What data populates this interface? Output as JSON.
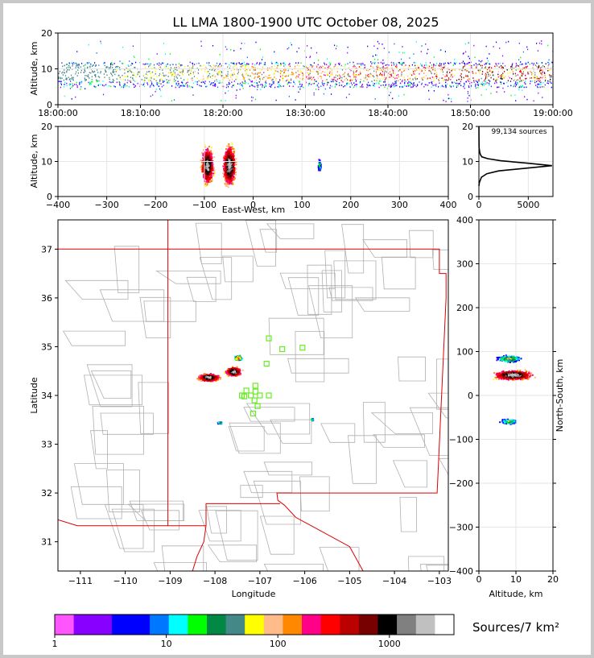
{
  "title": "LL LMA 1800-1900 UTC October 08, 2025",
  "chart_data": [
    {
      "type": "scatter",
      "panel": "time-height",
      "ylabel": "Altitude, km",
      "xlim": [
        "18:00:00",
        "19:00:00"
      ],
      "ylim": [
        0,
        20
      ],
      "x_ticks": [
        "18:00:00",
        "18:10:00",
        "18:20:00",
        "18:30:00",
        "18:40:00",
        "18:50:00",
        "19:00:00"
      ],
      "y_ticks": [
        "0",
        "10",
        "20"
      ],
      "dense_altitude_band_km": [
        5,
        12
      ]
    },
    {
      "type": "scatter",
      "panel": "east-west-altitude",
      "xlabel": "East-West, km",
      "ylabel": "Altitude, km",
      "xlim": [
        -400,
        400
      ],
      "ylim": [
        0,
        20
      ],
      "x_ticks": [
        "−400",
        "−300",
        "−200",
        "−100",
        "0",
        "100",
        "200",
        "300",
        "400"
      ],
      "y_ticks": [
        "0",
        "10",
        "20"
      ],
      "clusters": [
        {
          "x_km": -95,
          "alt_km": 9,
          "width_km": 30,
          "height_km": 16
        },
        {
          "x_km": -50,
          "alt_km": 9,
          "width_km": 30,
          "height_km": 18
        },
        {
          "x_km": 135,
          "alt_km": 9,
          "width_km": 8,
          "height_km": 6
        }
      ]
    },
    {
      "type": "line",
      "panel": "altitude-histogram",
      "annotation": "99,134 sources",
      "xlim": [
        0,
        7500
      ],
      "ylim": [
        0,
        20
      ],
      "x_ticks": [
        "0",
        "5000"
      ],
      "y_ticks": [
        "0",
        "10",
        "20"
      ],
      "x": [
        0,
        50,
        250,
        800,
        2000,
        4500,
        7400,
        5000,
        2200,
        900,
        300,
        150,
        80,
        20,
        0
      ],
      "y": [
        3,
        4,
        5.5,
        6.5,
        7.3,
        8.0,
        8.8,
        9.5,
        10.2,
        10.8,
        11.3,
        12,
        12.7,
        14,
        20
      ]
    },
    {
      "type": "scatter",
      "panel": "plan-view",
      "xlabel": "Longitude",
      "ylabel": "Latitude",
      "xlim": [
        -111.5,
        -102.8
      ],
      "ylim": [
        30.4,
        37.6
      ],
      "x_ticks": [
        "−111",
        "−110",
        "−109",
        "−108",
        "−107",
        "−106",
        "−105",
        "−104",
        "−103"
      ],
      "y_ticks": [
        "31",
        "32",
        "33",
        "34",
        "35",
        "36",
        "37"
      ],
      "clusters": [
        {
          "lon": -108.15,
          "lat": 34.38,
          "w": 0.55,
          "h": 0.18
        },
        {
          "lon": -107.6,
          "lat": 34.5,
          "w": 0.4,
          "h": 0.22
        },
        {
          "lon": -107.5,
          "lat": 34.78,
          "w": 0.2,
          "h": 0.12
        },
        {
          "lon": -107.9,
          "lat": 33.45,
          "w": 0.15,
          "h": 0.06
        },
        {
          "lon": -105.85,
          "lat": 33.52,
          "w": 0.08,
          "h": 0.05
        }
      ],
      "stations": [
        [
          -106.8,
          35.17
        ],
        [
          -106.5,
          34.95
        ],
        [
          -106.05,
          34.98
        ],
        [
          -106.85,
          34.65
        ],
        [
          -107.1,
          34.2
        ],
        [
          -107.1,
          34.08
        ],
        [
          -107.3,
          34.1
        ],
        [
          -107.4,
          34.0
        ],
        [
          -107.2,
          34.0
        ],
        [
          -107.0,
          34.0
        ],
        [
          -107.35,
          33.98
        ],
        [
          -107.12,
          33.9
        ],
        [
          -107.05,
          33.78
        ],
        [
          -107.15,
          33.63
        ],
        [
          -106.8,
          34.0
        ]
      ]
    },
    {
      "type": "scatter",
      "panel": "altitude-north-south",
      "xlabel": "Altitude, km",
      "ylabel": "North-South, km",
      "xlim": [
        0,
        20
      ],
      "ylim": [
        -400,
        400
      ],
      "x_ticks": [
        "0",
        "10",
        "20"
      ],
      "y_ticks": [
        "−400",
        "−300",
        "−200",
        "−100",
        "0",
        "100",
        "200",
        "300",
        "400"
      ],
      "clusters": [
        {
          "alt_km": 8,
          "ns_km": 85,
          "w_km": 10,
          "h_km": 18
        },
        {
          "alt_km": 9,
          "ns_km": 48,
          "w_km": 16,
          "h_km": 25
        },
        {
          "alt_km": 8,
          "ns_km": -58,
          "w_km": 8,
          "h_km": 14
        }
      ]
    }
  ],
  "colorbar": {
    "label": "Sources/7 km²",
    "ticks": [
      "1",
      "10",
      "100",
      "1000"
    ],
    "colors": [
      "#ff55ff",
      "#8800ff",
      "#8800ff",
      "#0000ff",
      "#0000ff",
      "#0077ff",
      "#00ffff",
      "#00ff00",
      "#008844",
      "#448888",
      "#ffff00",
      "#ffbb88",
      "#ff8800",
      "#ff0088",
      "#ff0000",
      "#bb0000",
      "#770000",
      "#000000",
      "#808080",
      "#c0c0c0",
      "#ffffff"
    ]
  }
}
